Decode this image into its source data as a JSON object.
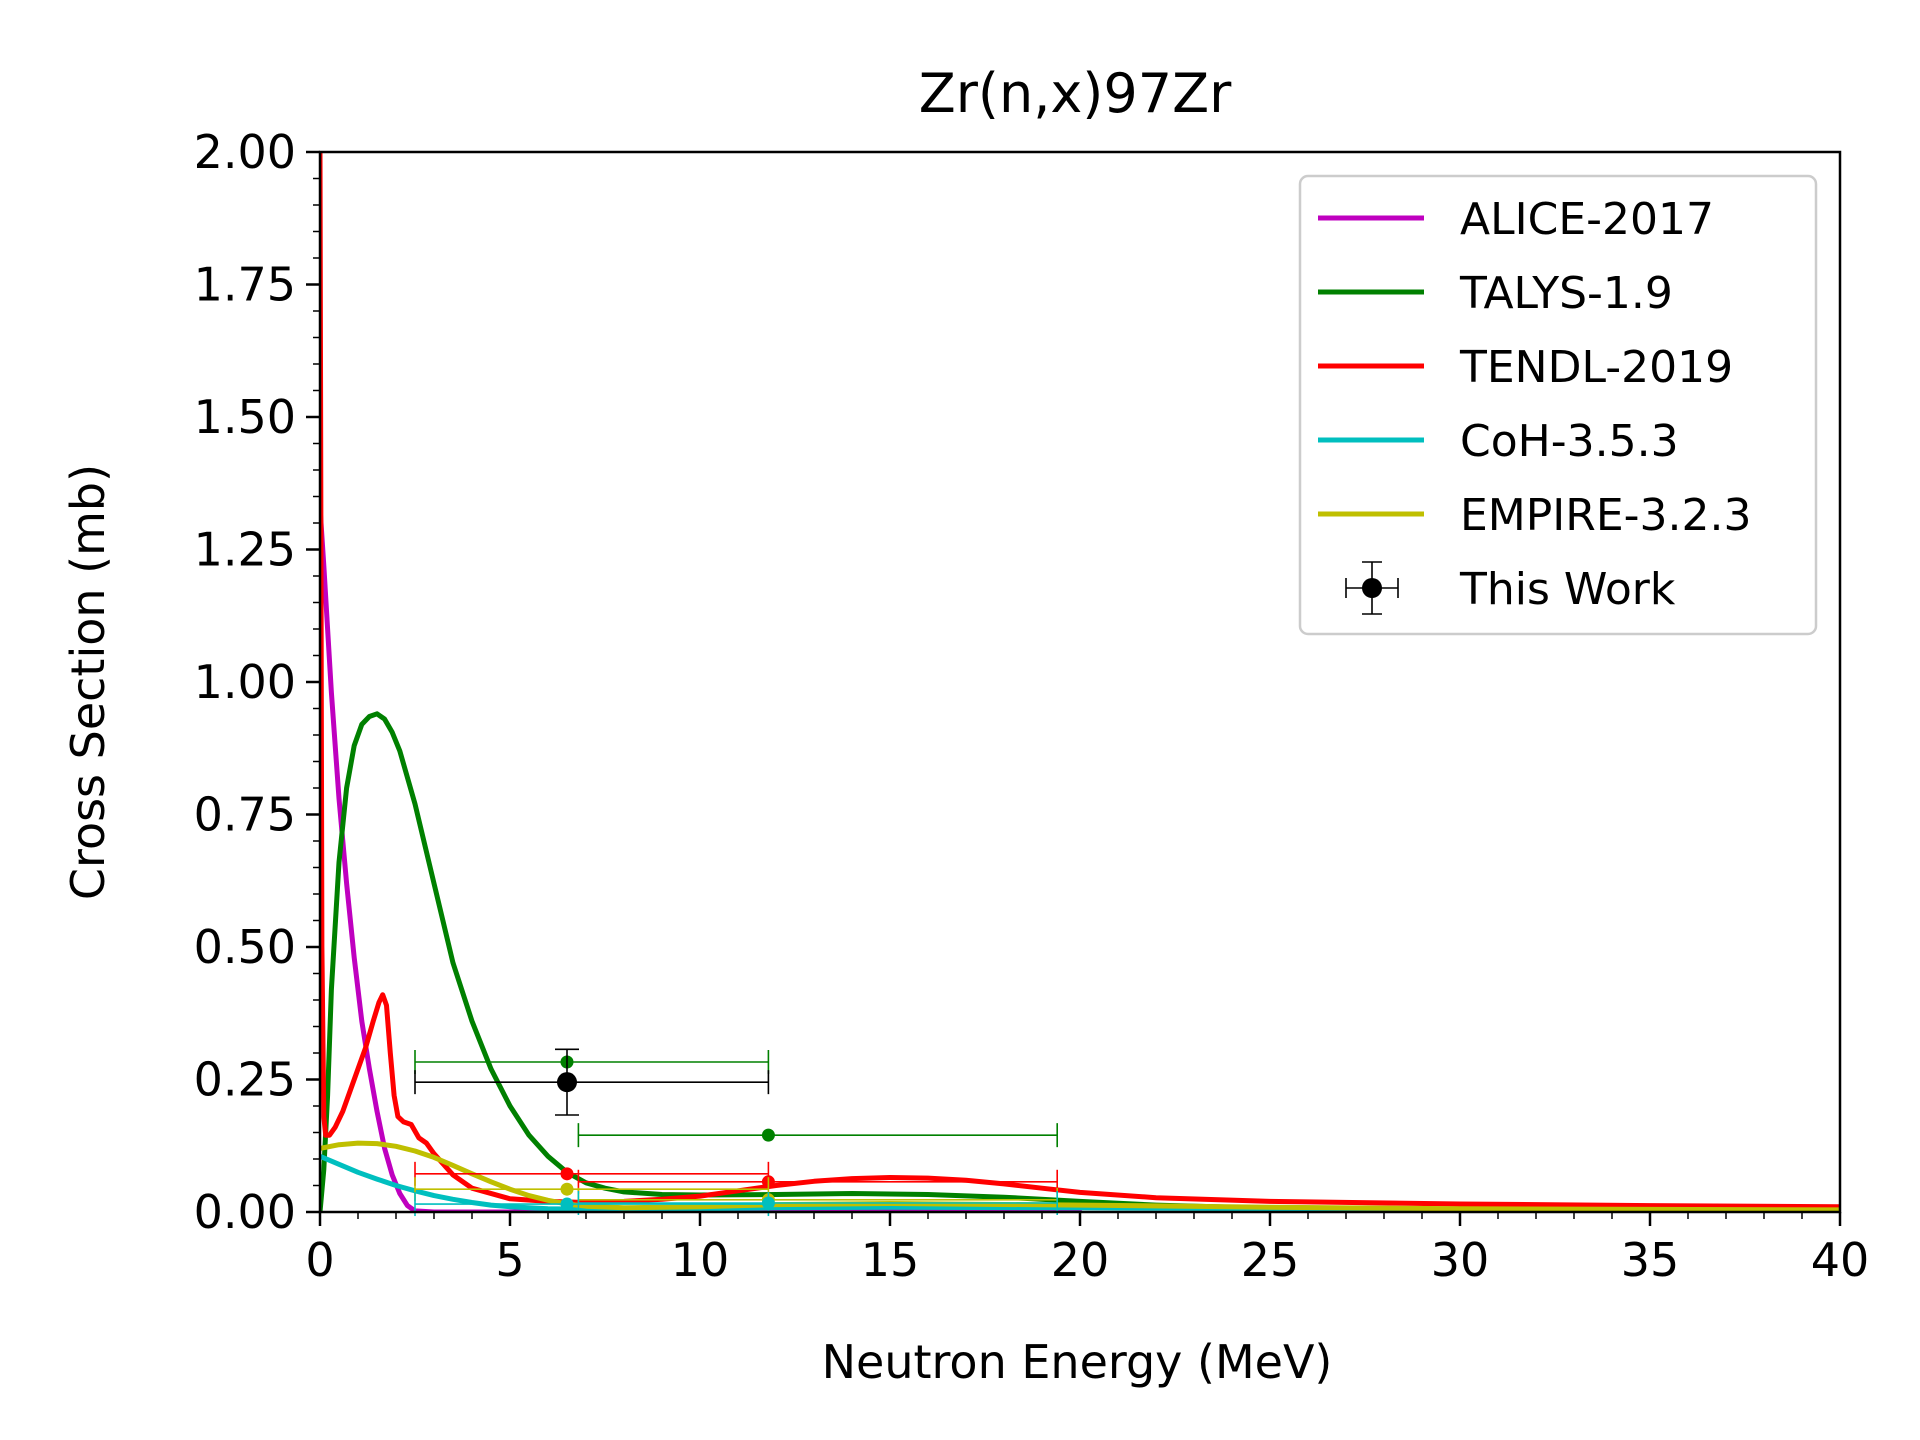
{
  "chart_data": {
    "type": "line",
    "title": "Zr(n,x)97Zr",
    "xlabel": "Neutron Energy (MeV)",
    "ylabel": "Cross Section (mb)",
    "xlim": [
      0,
      40
    ],
    "ylim": [
      0,
      2.0
    ],
    "xticks": [
      0,
      5,
      10,
      15,
      20,
      25,
      30,
      35,
      40
    ],
    "yticks": [
      0.0,
      0.25,
      0.5,
      0.75,
      1.0,
      1.25,
      1.5,
      1.75,
      2.0
    ],
    "xtick_labels": [
      "0",
      "5",
      "10",
      "15",
      "20",
      "25",
      "30",
      "35",
      "40"
    ],
    "ytick_labels": [
      "0.00",
      "0.25",
      "0.50",
      "0.75",
      "1.00",
      "1.25",
      "1.50",
      "1.75",
      "2.00"
    ],
    "grid": false,
    "legend_position": "top-right",
    "series": [
      {
        "name": "ALICE-2017",
        "color": "#bf00bf",
        "x": [
          0.0,
          0.1,
          0.2,
          0.3,
          0.5,
          0.7,
          0.9,
          1.1,
          1.3,
          1.5,
          1.7,
          1.9,
          2.1,
          2.3,
          2.5,
          3.0,
          4.0,
          6.0,
          10.0,
          15.0,
          20.0
        ],
        "y": [
          1.33,
          1.22,
          1.1,
          0.98,
          0.78,
          0.62,
          0.48,
          0.36,
          0.27,
          0.19,
          0.12,
          0.07,
          0.035,
          0.012,
          0.002,
          0.0,
          0.0,
          0.0,
          0.0,
          0.0,
          0.0
        ]
      },
      {
        "name": "TALYS-1.9",
        "color": "#008000",
        "x": [
          0.0,
          0.1,
          0.2,
          0.3,
          0.5,
          0.7,
          0.9,
          1.1,
          1.3,
          1.5,
          1.7,
          1.9,
          2.1,
          2.5,
          3.0,
          3.5,
          4.0,
          4.5,
          5.0,
          5.5,
          6.0,
          6.5,
          7.0,
          7.5,
          8.0,
          9.0,
          10.0,
          12.0,
          14.0,
          16.0,
          18.0,
          20.0,
          22.0,
          25.0,
          30.0,
          35.0,
          40.0
        ],
        "y": [
          0.0,
          0.08,
          0.22,
          0.42,
          0.66,
          0.8,
          0.88,
          0.92,
          0.935,
          0.94,
          0.93,
          0.905,
          0.87,
          0.77,
          0.62,
          0.47,
          0.36,
          0.27,
          0.2,
          0.145,
          0.105,
          0.075,
          0.055,
          0.045,
          0.038,
          0.033,
          0.032,
          0.033,
          0.035,
          0.033,
          0.028,
          0.02,
          0.013,
          0.007,
          0.004,
          0.003,
          0.002
        ]
      },
      {
        "name": "TENDL-2019",
        "color": "#ff0000",
        "x": [
          0.0,
          0.05,
          0.1,
          0.15,
          0.25,
          0.4,
          0.6,
          0.8,
          1.0,
          1.2,
          1.4,
          1.55,
          1.65,
          1.75,
          1.85,
          1.95,
          2.05,
          2.2,
          2.4,
          2.6,
          2.8,
          3.0,
          3.5,
          4.0,
          5.0,
          6.0,
          7.0,
          8.0,
          9.0,
          10.0,
          11.0,
          12.0,
          13.0,
          14.0,
          15.0,
          16.0,
          17.0,
          18.0,
          19.0,
          20.0,
          22.0,
          25.0,
          30.0,
          35.0,
          40.0
        ],
        "y": [
          2.0,
          0.5,
          0.18,
          0.145,
          0.145,
          0.16,
          0.19,
          0.23,
          0.27,
          0.31,
          0.36,
          0.395,
          0.41,
          0.39,
          0.3,
          0.22,
          0.18,
          0.17,
          0.165,
          0.14,
          0.13,
          0.11,
          0.07,
          0.045,
          0.025,
          0.02,
          0.018,
          0.02,
          0.024,
          0.03,
          0.04,
          0.05,
          0.058,
          0.063,
          0.065,
          0.064,
          0.06,
          0.053,
          0.045,
          0.037,
          0.027,
          0.02,
          0.015,
          0.012,
          0.01
        ]
      },
      {
        "name": "CoH-3.5.3",
        "color": "#00bfbf",
        "x": [
          0.0,
          0.5,
          1.0,
          1.5,
          2.0,
          2.5,
          3.0,
          3.5,
          4.0,
          4.5,
          5.0,
          5.5,
          6.0,
          7.0,
          8.0,
          10.0,
          12.0,
          15.0,
          20.0,
          25.0,
          30.0,
          40.0
        ],
        "y": [
          0.105,
          0.09,
          0.075,
          0.062,
          0.05,
          0.04,
          0.031,
          0.024,
          0.018,
          0.013,
          0.01,
          0.008,
          0.006,
          0.005,
          0.005,
          0.006,
          0.008,
          0.009,
          0.008,
          0.006,
          0.004,
          0.003
        ]
      },
      {
        "name": "EMPIRE-3.2.3",
        "color": "#bfbf00",
        "x": [
          0.0,
          0.5,
          1.0,
          1.5,
          2.0,
          2.5,
          3.0,
          3.5,
          4.0,
          4.5,
          5.0,
          5.5,
          6.0,
          6.5,
          7.0,
          8.0,
          10.0,
          12.0,
          15.0,
          20.0,
          25.0,
          30.0,
          40.0
        ],
        "y": [
          0.12,
          0.127,
          0.13,
          0.129,
          0.124,
          0.115,
          0.103,
          0.088,
          0.072,
          0.057,
          0.043,
          0.031,
          0.022,
          0.015,
          0.011,
          0.008,
          0.01,
          0.014,
          0.016,
          0.013,
          0.009,
          0.006,
          0.004
        ]
      }
    ],
    "model_points": [
      {
        "series": "TALYS-1.9",
        "color": "#008000",
        "x": 6.5,
        "y": 0.283,
        "xerr": [
          2.5,
          11.8
        ]
      },
      {
        "series": "TALYS-1.9",
        "color": "#008000",
        "x": 11.8,
        "y": 0.145,
        "xerr": [
          6.8,
          19.4
        ]
      },
      {
        "series": "TENDL-2019",
        "color": "#ff0000",
        "x": 6.5,
        "y": 0.072,
        "xerr": [
          2.5,
          11.8
        ]
      },
      {
        "series": "TENDL-2019",
        "color": "#ff0000",
        "x": 11.8,
        "y": 0.057,
        "xerr": [
          6.8,
          19.4
        ]
      },
      {
        "series": "EMPIRE-3.2.3",
        "color": "#bfbf00",
        "x": 6.5,
        "y": 0.043,
        "xerr": [
          2.5,
          11.8
        ]
      },
      {
        "series": "EMPIRE-3.2.3",
        "color": "#bfbf00",
        "x": 11.8,
        "y": 0.023,
        "xerr": [
          6.8,
          19.4
        ]
      },
      {
        "series": "CoH-3.5.3",
        "color": "#00bfbf",
        "x": 6.5,
        "y": 0.015,
        "xerr": [
          2.5,
          11.8
        ]
      },
      {
        "series": "CoH-3.5.3",
        "color": "#00bfbf",
        "x": 11.8,
        "y": 0.017,
        "xerr": [
          6.8,
          19.4
        ]
      }
    ],
    "experimental": {
      "name": "This Work",
      "color": "#000000",
      "x": 6.5,
      "y": 0.245,
      "xerr": [
        2.5,
        11.8
      ],
      "yerr": [
        0.183,
        0.307
      ]
    }
  }
}
